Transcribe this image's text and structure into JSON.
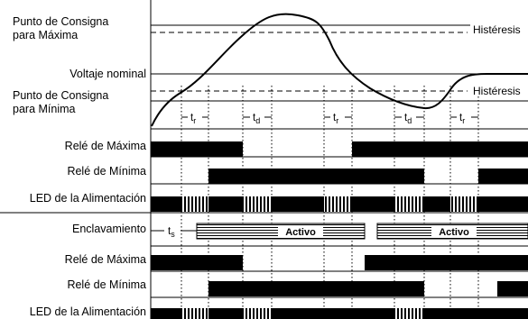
{
  "labels": {
    "setpoint_max_1": "Punto de Consigna",
    "setpoint_max_2": "para Máxima",
    "nominal_voltage": "Voltaje nominal",
    "setpoint_min_1": "Punto de Consigna",
    "setpoint_min_2": "para Mínima",
    "hysteresis_upper": "Histéresis",
    "hysteresis_lower": "Histéresis",
    "relay_max": "Relé de Máxima",
    "relay_min": "Relé de Mínima",
    "power_led": "LED de la Alimentación",
    "latching": "Enclavamiento",
    "relay_max_2": "Relé de Máxima",
    "relay_min_2": "Relé de Mínima",
    "power_led_2": "LED de la Alimentación"
  },
  "time_markers": {
    "tr_1": "t",
    "tr_1_sub": "r",
    "td_1": "t",
    "td_1_sub": "d",
    "tr_2": "t",
    "tr_2_sub": "r",
    "td_2": "t",
    "td_2_sub": "d",
    "tr_3": "t",
    "tr_3_sub": "r",
    "ts": "t",
    "ts_sub": "s"
  },
  "latch_states": {
    "active_1": "Activo",
    "active_2": "Activo"
  }
}
